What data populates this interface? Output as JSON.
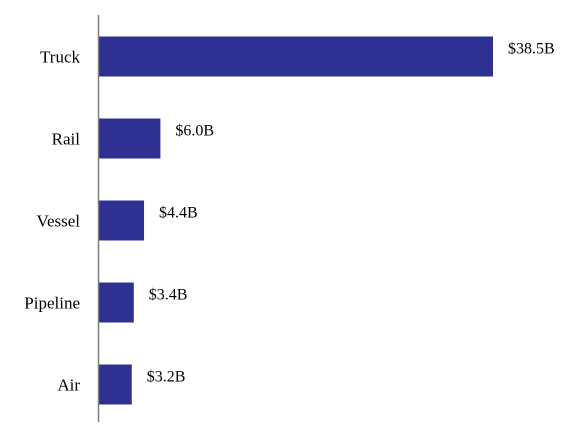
{
  "chart_data": {
    "type": "bar",
    "orientation": "horizontal",
    "categories": [
      "Truck",
      "Rail",
      "Vessel",
      "Pipeline",
      "Air"
    ],
    "values": [
      38.5,
      6.0,
      4.4,
      3.4,
      3.2
    ],
    "value_labels": [
      "$38.5B",
      "$6.0B",
      "$4.4B",
      "$3.4B",
      "$3.2B"
    ],
    "title": "",
    "xlabel": "",
    "ylabel": "",
    "xlim": [
      0,
      38.5
    ],
    "grid": false,
    "legend": "none",
    "bar_color": "#2e3192",
    "axis_color": "#7f7f7f"
  }
}
